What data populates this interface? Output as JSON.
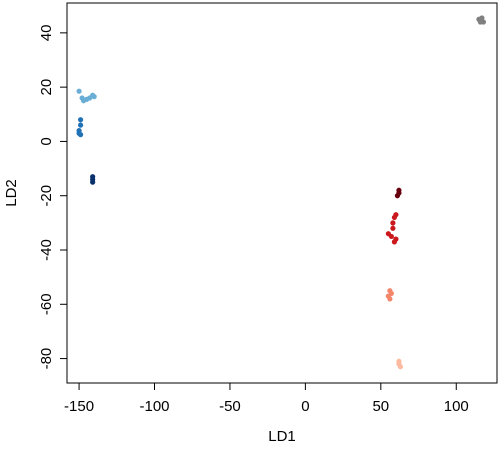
{
  "chart_data": {
    "type": "scatter",
    "xlabel": "LD1",
    "ylabel": "LD2",
    "xlim": [
      -158,
      127
    ],
    "ylim": [
      -89,
      51
    ],
    "xticks": [
      -150,
      -100,
      -50,
      0,
      50,
      100
    ],
    "yticks": [
      -80,
      -60,
      -40,
      -20,
      0,
      20,
      40
    ],
    "series": [
      {
        "color": "#6aaed6",
        "x": [
          -150,
          -148,
          -147,
          -145,
          -143,
          -141,
          -140
        ],
        "values": [
          18.5,
          16,
          15,
          15.5,
          16,
          17,
          16.5
        ]
      },
      {
        "color": "#2171b5",
        "x": [
          -149,
          -149,
          -150,
          -150,
          -149
        ],
        "values": [
          8,
          6,
          4,
          3,
          2.5
        ]
      },
      {
        "color": "#08306b",
        "x": [
          -141,
          -141,
          -141
        ],
        "values": [
          -13,
          -14,
          -15
        ]
      },
      {
        "color": "#808080",
        "x": [
          115,
          116,
          118,
          117
        ],
        "values": [
          45,
          44,
          44,
          45.5
        ]
      },
      {
        "color": "#67000d",
        "x": [
          62,
          61,
          62
        ],
        "values": [
          -18,
          -20,
          -19
        ]
      },
      {
        "color": "#cb181d",
        "x": [
          60,
          59,
          58,
          55,
          57,
          60,
          59,
          58
        ],
        "values": [
          -27,
          -28,
          -32,
          -34,
          -35,
          -36,
          -37,
          -30
        ]
      },
      {
        "color": "#f4866b",
        "x": [
          56,
          57,
          55,
          56
        ],
        "values": [
          -55,
          -56,
          -57,
          -58
        ]
      },
      {
        "color": "#fcbba1",
        "x": [
          62,
          62,
          63
        ],
        "values": [
          -81,
          -82,
          -83
        ]
      }
    ]
  }
}
